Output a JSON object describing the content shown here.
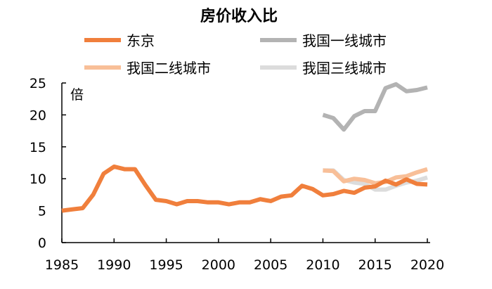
{
  "chart_data": {
    "type": "line",
    "title": "房价收入比",
    "ylabel": "倍",
    "xlabel": "",
    "xlim": [
      1985,
      2020
    ],
    "ylim": [
      0,
      25
    ],
    "xticks": [
      1985,
      1990,
      1995,
      2000,
      2005,
      2010,
      2015,
      2020
    ],
    "yticks": [
      0,
      5,
      10,
      15,
      20,
      25
    ],
    "grid": false,
    "legend": "top",
    "series": [
      {
        "name": "东京",
        "color": "#f07f3c",
        "x": [
          1985,
          1986,
          1987,
          1988,
          1989,
          1990,
          1991,
          1992,
          1993,
          1994,
          1995,
          1996,
          1997,
          1998,
          1999,
          2000,
          2001,
          2002,
          2003,
          2004,
          2005,
          2006,
          2007,
          2008,
          2009,
          2010,
          2011,
          2012,
          2013,
          2014,
          2015,
          2016,
          2017,
          2018,
          2019,
          2020
        ],
        "values": [
          5.0,
          5.2,
          5.4,
          7.5,
          10.8,
          11.9,
          11.5,
          11.5,
          9.0,
          6.7,
          6.5,
          6.0,
          6.5,
          6.5,
          6.3,
          6.3,
          6.0,
          6.3,
          6.3,
          6.8,
          6.5,
          7.2,
          7.4,
          8.9,
          8.4,
          7.4,
          7.6,
          8.1,
          7.8,
          8.6,
          8.8,
          9.7,
          9.1,
          9.9,
          9.2,
          9.1
        ]
      },
      {
        "name": "我国一线城市",
        "color": "#b3b3b3",
        "x": [
          2010,
          2011,
          2012,
          2013,
          2014,
          2015,
          2016,
          2017,
          2018,
          2019,
          2020
        ],
        "values": [
          20.0,
          19.5,
          17.7,
          19.8,
          20.6,
          20.6,
          24.2,
          24.8,
          23.7,
          23.9,
          24.3
        ]
      },
      {
        "name": "我国二线城市",
        "color": "#f8bf98",
        "x": [
          2010,
          2011,
          2012,
          2013,
          2014,
          2015,
          2016,
          2017,
          2018,
          2019,
          2020
        ],
        "values": [
          11.3,
          11.2,
          9.6,
          10.0,
          9.8,
          9.3,
          9.5,
          10.2,
          10.4,
          11.0,
          11.5
        ]
      },
      {
        "name": "我国三线城市",
        "color": "#dcdcdc",
        "x": [
          2010,
          2011,
          2012,
          2013,
          2014,
          2015,
          2016,
          2017,
          2018,
          2019,
          2020
        ],
        "values": [
          11.3,
          11.3,
          9.8,
          9.4,
          9.2,
          8.3,
          8.3,
          8.9,
          9.4,
          9.7,
          10.2
        ]
      }
    ]
  }
}
